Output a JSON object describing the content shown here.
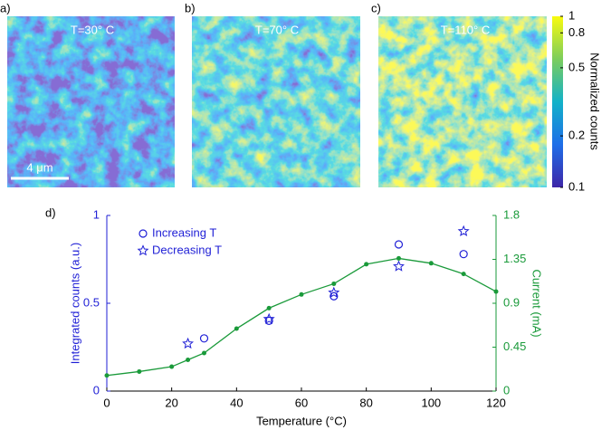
{
  "panels": [
    {
      "label": "a)",
      "temperature": "T=30° C"
    },
    {
      "label": "b)",
      "temperature": "T=70° C"
    },
    {
      "label": "c)",
      "temperature": "T=110° C"
    }
  ],
  "scale_bar": "4 μm",
  "colorbar": {
    "label": "Normalized counts",
    "lim": [
      0.1,
      1
    ],
    "ticks": [
      0.1,
      0.2,
      0.5,
      0.8,
      1
    ],
    "log": true
  },
  "chart_label": "d)",
  "chart_data": {
    "type": "scatter-line",
    "xlabel": "Temperature (°C)",
    "ylabel": "Integrated counts (a.u.)",
    "y2label": "Current (mA)",
    "xlim": [
      0,
      120
    ],
    "xticks": [
      0,
      20,
      40,
      60,
      80,
      100,
      120
    ],
    "ylim": [
      0,
      1
    ],
    "yticks": [
      0,
      0.5,
      1
    ],
    "y2lim": [
      0,
      1.8
    ],
    "y2ticks": [
      0,
      0.45,
      0.9,
      1.35,
      1.8
    ],
    "legend": "upper left",
    "series": [
      {
        "name": "Increasing T",
        "color": "#1f1fd6",
        "marker": "circle",
        "x": [
          30,
          50,
          70,
          90,
          110
        ],
        "values": [
          0.3,
          0.4,
          0.54,
          0.835,
          0.78
        ]
      },
      {
        "name": "Decreasing T",
        "color": "#1f1fd6",
        "marker": "star",
        "x": [
          25,
          50,
          70,
          90,
          110
        ],
        "values": [
          0.27,
          0.41,
          0.56,
          0.71,
          0.91
        ]
      },
      {
        "color": "#1a9a3a",
        "marker": "dot-line",
        "axis": "y2",
        "x": [
          0,
          10,
          20,
          25,
          30,
          40,
          50,
          60,
          70,
          80,
          90,
          100,
          110,
          120
        ],
        "values": [
          0.16,
          0.2,
          0.25,
          0.32,
          0.39,
          0.64,
          0.85,
          0.99,
          1.1,
          1.3,
          1.36,
          1.31,
          1.2,
          1.02
        ]
      }
    ]
  }
}
